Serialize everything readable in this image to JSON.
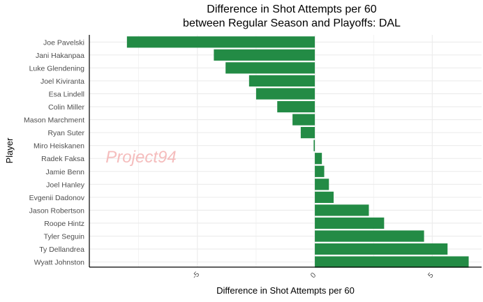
{
  "chart_data": {
    "type": "bar",
    "orientation": "horizontal",
    "title": "Difference in Shot Attempts per 60",
    "subtitle": "between Regular Season and Playoffs: DAL",
    "xlabel": "Difference in Shot Attempts per 60",
    "ylabel": "Player",
    "watermark": "Project94",
    "xlim": [
      -9.6,
      7.1
    ],
    "x_ticks": [
      -5,
      0,
      5
    ],
    "x_tick_labels": [
      "-5",
      "0",
      "5"
    ],
    "grid": true,
    "legend": "none",
    "categories": [
      "Joe Pavelski",
      "Jani Hakanpaa",
      "Luke Glendening",
      "Joel Kiviranta",
      "Esa Lindell",
      "Colin Miller",
      "Mason Marchment",
      "Ryan Suter",
      "Miro Heiskanen",
      "Radek Faksa",
      "Jamie Benn",
      "Joel Hanley",
      "Evgenii Dadonov",
      "Jason Robertson",
      "Roope Hintz",
      "Tyler Seguin",
      "Ty Dellandrea",
      "Wyatt Johnston"
    ],
    "values": [
      -8.0,
      -4.3,
      -3.8,
      -2.8,
      -2.5,
      -1.6,
      -0.95,
      -0.6,
      -0.05,
      0.3,
      0.4,
      0.6,
      0.8,
      2.3,
      2.95,
      4.65,
      5.65,
      6.55
    ],
    "colors": {
      "bar": "#238b45",
      "grid": "#ebebeb",
      "axis": "#000000",
      "tick_text": "#4d4d4d",
      "title": "#000000",
      "watermark": "#f4b6b6"
    }
  }
}
